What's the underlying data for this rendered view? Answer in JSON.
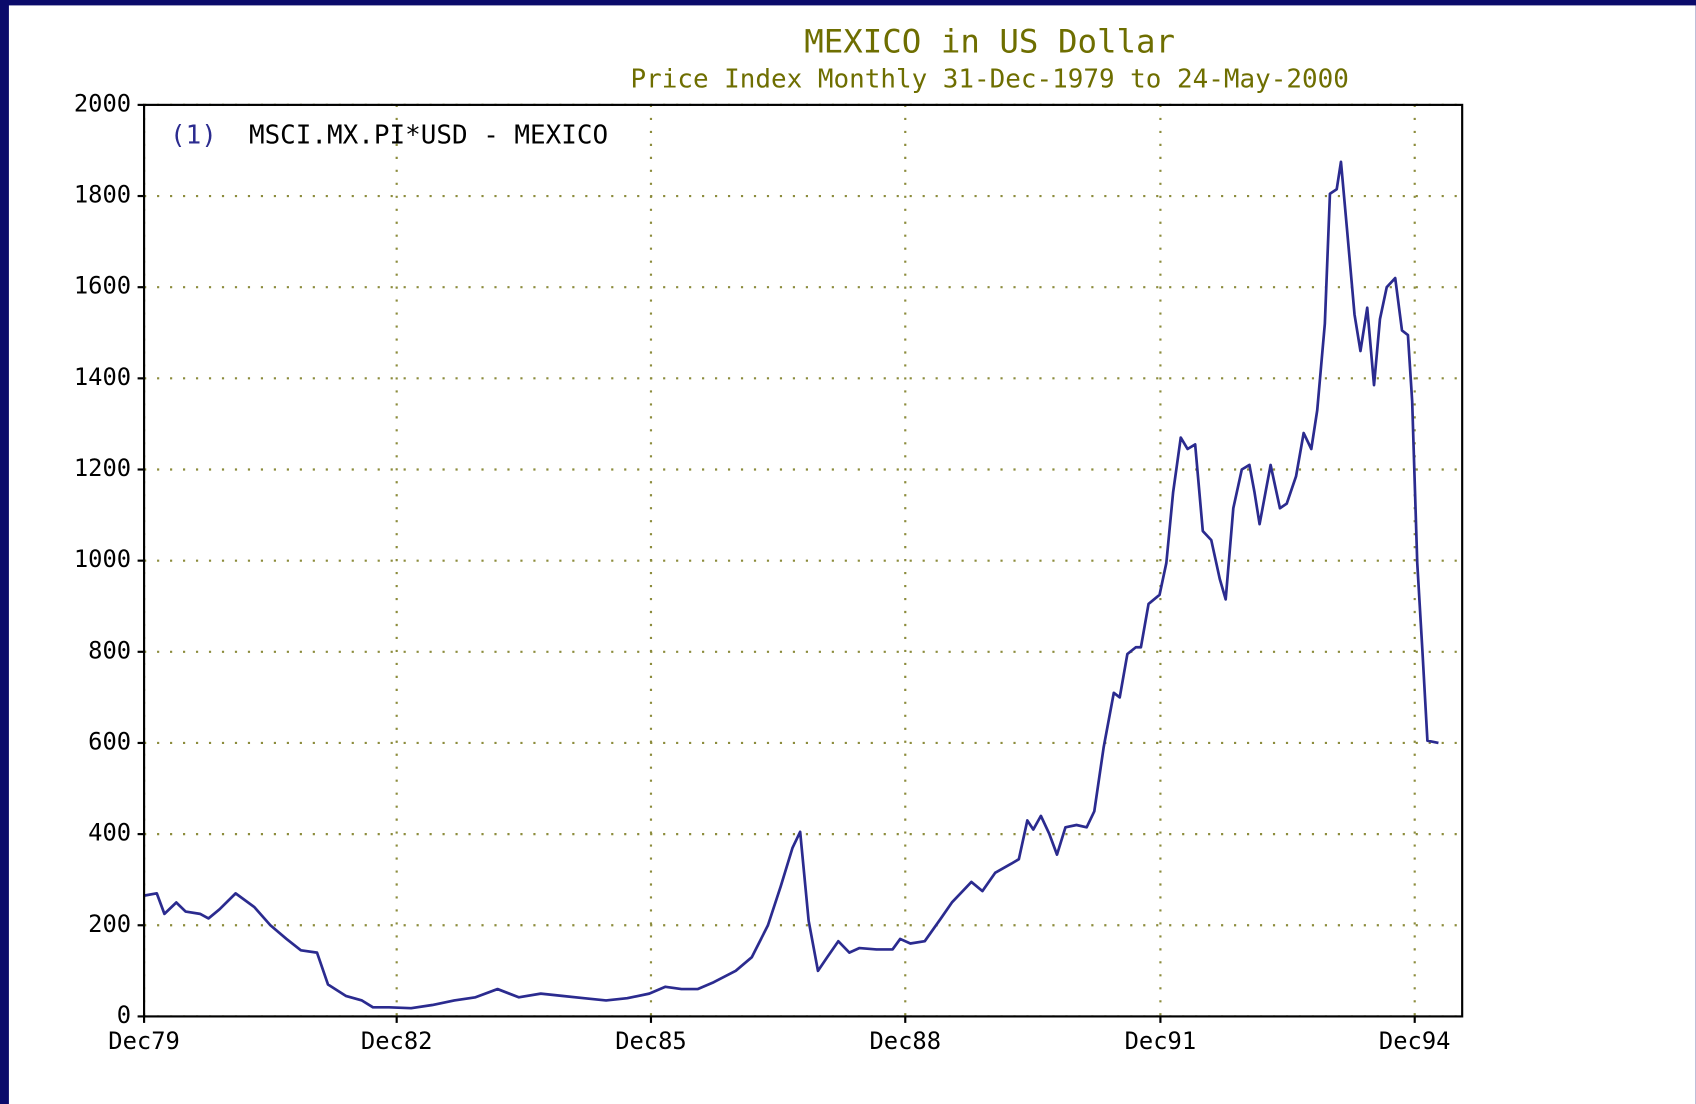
{
  "chart_data": {
    "type": "line",
    "title": "MEXICO in US Dollar",
    "subtitle": "Price Index Monthly 31-Dec-1979 to 24-May-2000",
    "legend_index": "(1)",
    "grid": true,
    "xlim": [
      1979.92,
      1995.47
    ],
    "xticks": [
      {
        "value": 1979.92,
        "label": "Dec79"
      },
      {
        "value": 1982.9,
        "label": "Dec82"
      },
      {
        "value": 1985.9,
        "label": "Dec85"
      },
      {
        "value": 1988.9,
        "label": "Dec88"
      },
      {
        "value": 1991.91,
        "label": "Dec91"
      },
      {
        "value": 1994.91,
        "label": "Dec94"
      }
    ],
    "ylim": [
      0,
      2000
    ],
    "yticks": [
      0,
      200,
      400,
      600,
      800,
      1000,
      1200,
      1400,
      1600,
      1800,
      2000
    ],
    "x": [
      1979.92,
      1980.07,
      1980.16,
      1980.3,
      1980.41,
      1980.58,
      1980.68,
      1980.81,
      1981.0,
      1981.22,
      1981.41,
      1981.6,
      1981.77,
      1981.96,
      1982.09,
      1982.3,
      1982.49,
      1982.62,
      1982.81,
      1983.07,
      1983.32,
      1983.58,
      1983.83,
      1984.09,
      1984.34,
      1984.6,
      1984.85,
      1985.11,
      1985.37,
      1985.62,
      1985.88,
      1986.07,
      1986.26,
      1986.45,
      1986.64,
      1986.9,
      1987.09,
      1987.28,
      1987.43,
      1987.57,
      1987.66,
      1987.76,
      1987.87,
      1987.98,
      1988.11,
      1988.24,
      1988.36,
      1988.56,
      1988.75,
      1988.84,
      1988.96,
      1989.13,
      1989.32,
      1989.45,
      1989.68,
      1989.81,
      1989.96,
      1990.15,
      1990.24,
      1990.34,
      1990.41,
      1990.5,
      1990.6,
      1990.69,
      1990.79,
      1990.92,
      1991.04,
      1991.13,
      1991.24,
      1991.36,
      1991.43,
      1991.52,
      1991.62,
      1991.68,
      1991.77,
      1991.9,
      1991.98,
      1992.06,
      1992.15,
      1992.23,
      1992.32,
      1992.41,
      1992.51,
      1992.61,
      1992.68,
      1992.77,
      1992.87,
      1992.96,
      1993.02,
      1993.08,
      1993.15,
      1993.21,
      1993.32,
      1993.4,
      1993.51,
      1993.6,
      1993.69,
      1993.76,
      1993.85,
      1993.91,
      1993.99,
      1994.04,
      1994.11,
      1994.2,
      1994.27,
      1994.35,
      1994.43,
      1994.5,
      1994.58,
      1994.68,
      1994.76,
      1994.83,
      1994.88,
      1994.94,
      1995.0,
      1995.06,
      1995.19
    ],
    "series": [
      {
        "name": "MSCI.MX.PI*USD - MEXICO",
        "color": "#2b2b8f",
        "values": [
          265,
          270,
          225,
          250,
          230,
          225,
          215,
          235,
          270,
          240,
          200,
          170,
          145,
          140,
          70,
          45,
          35,
          20,
          20,
          18,
          25,
          35,
          42,
          60,
          42,
          50,
          45,
          40,
          35,
          40,
          50,
          65,
          60,
          60,
          75,
          100,
          130,
          200,
          285,
          370,
          405,
          210,
          100,
          130,
          165,
          140,
          150,
          147,
          147,
          170,
          160,
          165,
          215,
          250,
          295,
          275,
          315,
          335,
          345,
          430,
          410,
          440,
          400,
          355,
          415,
          420,
          415,
          450,
          590,
          710,
          700,
          795,
          810,
          810,
          905,
          925,
          995,
          1150,
          1270,
          1245,
          1255,
          1065,
          1045,
          960,
          915,
          1115,
          1200,
          1210,
          1150,
          1080,
          1150,
          1210,
          1115,
          1125,
          1185,
          1280,
          1245,
          1330,
          1520,
          1805,
          1815,
          1875,
          1730,
          1540,
          1460,
          1555,
          1385,
          1530,
          1600,
          1620,
          1505,
          1495,
          1350,
          995,
          805,
          605,
          600
        ]
      }
    ]
  }
}
